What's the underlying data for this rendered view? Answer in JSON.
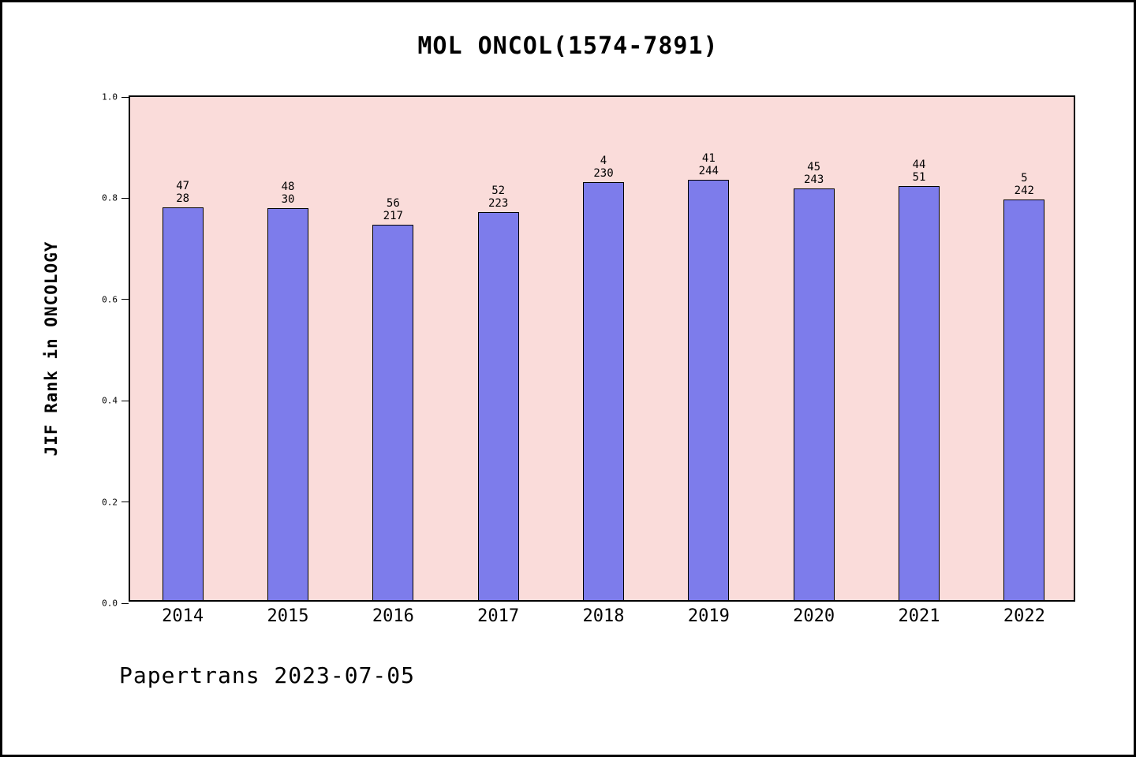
{
  "title": "MOL ONCOL(1574-7891)",
  "footer": "Papertrans 2023-07-05",
  "colors": {
    "bar_fill": "#7d7ceb",
    "bar_edge": "#000000",
    "plot_background": "#fadcda",
    "page_background": "#ffffff",
    "frame_border": "#000000"
  },
  "chart_data": {
    "type": "bar",
    "title": "MOL ONCOL(1574-7891)",
    "xlabel": "",
    "ylabel": "JIF Rank in ONCOLOGY",
    "categories": [
      "2014",
      "2015",
      "2016",
      "2017",
      "2018",
      "2019",
      "2020",
      "2021",
      "2022"
    ],
    "values": [
      0.775,
      0.774,
      0.742,
      0.766,
      0.826,
      0.83,
      0.813,
      0.818,
      0.791
    ],
    "bar_labels": [
      [
        "47",
        "28"
      ],
      [
        "48",
        "30"
      ],
      [
        "56",
        "217"
      ],
      [
        "52",
        "223"
      ],
      [
        "4",
        "230"
      ],
      [
        "41",
        "244"
      ],
      [
        "45",
        "243"
      ],
      [
        "44",
        "51"
      ],
      [
        "5",
        "242"
      ]
    ],
    "ylim": [
      0.0,
      1.0
    ],
    "yticks": [
      0.0,
      0.2,
      0.4,
      0.6,
      0.8,
      1.0
    ],
    "ytick_labels": [
      "0.0",
      "0.2",
      "0.4",
      "0.6",
      "0.8",
      "1.0"
    ],
    "grid": false,
    "legend": "none"
  }
}
